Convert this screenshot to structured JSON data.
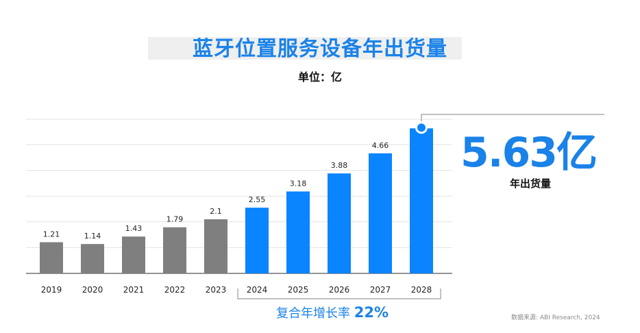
{
  "chart_data": {
    "type": "bar",
    "title": "蓝牙位置服务设备年出货量",
    "unit_label": "单位：亿",
    "categories": [
      "2019",
      "2020",
      "2021",
      "2022",
      "2023",
      "2024",
      "2025",
      "2026",
      "2027",
      "2028"
    ],
    "values": [
      1.21,
      1.14,
      1.43,
      1.79,
      2.1,
      2.55,
      3.18,
      3.88,
      4.66,
      5.63
    ],
    "value_labels": [
      "1.21",
      "1.14",
      "1.43",
      "1.79",
      "2.1",
      "2.55",
      "3.18",
      "3.88",
      "4.66",
      ""
    ],
    "historical_count": 5,
    "historical_color": "#7f7f7f",
    "forecast_color": "#0a84ff",
    "ylim": [
      0,
      6
    ],
    "grid": true,
    "highlight": {
      "value": "5.63亿",
      "caption": "年出货量"
    },
    "cagr": {
      "label": "复合年增长率",
      "value": "22%"
    },
    "source": "数据来源: ABI Research, 2024"
  }
}
